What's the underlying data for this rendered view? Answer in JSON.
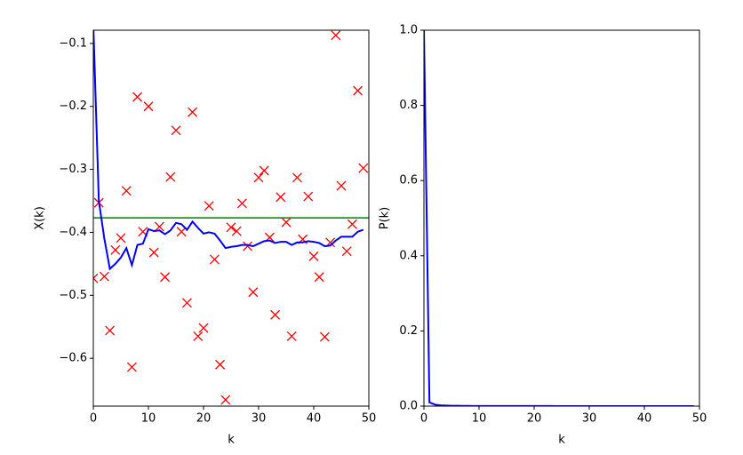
{
  "chart_data": [
    {
      "type": "scatter",
      "xlabel": "k",
      "ylabel": "X(k)",
      "x": [
        0,
        1,
        2,
        3,
        4,
        5,
        6,
        7,
        8,
        9,
        10,
        11,
        12,
        13,
        14,
        15,
        16,
        17,
        18,
        19,
        20,
        21,
        22,
        23,
        24,
        25,
        26,
        27,
        28,
        29,
        30,
        31,
        32,
        33,
        34,
        35,
        36,
        37,
        38,
        39,
        40,
        41,
        42,
        43,
        44,
        45,
        46,
        47,
        48,
        49
      ],
      "series": [
        {
          "style": "marker",
          "marker": "x",
          "color": "#ff0000",
          "values": [
            -0.473,
            -0.353,
            -0.47,
            -0.556,
            -0.428,
            -0.409,
            -0.334,
            -0.614,
            -0.185,
            -0.399,
            -0.2,
            -0.432,
            -0.391,
            -0.471,
            -0.312,
            -0.238,
            -0.399,
            -0.512,
            -0.209,
            -0.565,
            -0.552,
            -0.358,
            -0.443,
            -0.61,
            -0.666,
            -0.392,
            -0.398,
            -0.354,
            -0.422,
            -0.495,
            -0.313,
            -0.302,
            -0.408,
            -0.531,
            -0.344,
            -0.384,
            -0.565,
            -0.313,
            -0.411,
            -0.343,
            -0.438,
            -0.471,
            -0.566,
            -0.416,
            -0.087,
            -0.326,
            -0.43,
            -0.387,
            -0.175,
            -0.298
          ]
        },
        {
          "style": "line",
          "color": "#0000ff",
          "values": [
            -0.07,
            -0.35,
            -0.41,
            -0.458,
            -0.45,
            -0.44,
            -0.425,
            -0.452,
            -0.42,
            -0.418,
            -0.395,
            -0.398,
            -0.397,
            -0.403,
            -0.397,
            -0.385,
            -0.387,
            -0.396,
            -0.383,
            -0.393,
            -0.402,
            -0.4,
            -0.402,
            -0.413,
            -0.425,
            -0.423,
            -0.422,
            -0.42,
            -0.42,
            -0.422,
            -0.418,
            -0.414,
            -0.413,
            -0.417,
            -0.415,
            -0.415,
            -0.42,
            -0.416,
            -0.416,
            -0.414,
            -0.415,
            -0.417,
            -0.422,
            -0.421,
            -0.413,
            -0.407,
            -0.407,
            -0.407,
            -0.399,
            -0.396
          ]
        }
      ],
      "hline": {
        "value": -0.377,
        "color": "#008000"
      },
      "xlim": [
        0,
        50
      ],
      "xticks": [
        0,
        10,
        20,
        30,
        40,
        50
      ],
      "ylim": [
        -0.676,
        -0.079
      ],
      "yticks": [
        {
          "value": -0.1,
          "label": "−0.1"
        },
        {
          "value": -0.2,
          "label": "−0.2"
        },
        {
          "value": -0.3,
          "label": "−0.3"
        },
        {
          "value": -0.4,
          "label": "−0.4"
        },
        {
          "value": -0.5,
          "label": "−0.5"
        },
        {
          "value": -0.6,
          "label": "−0.6"
        }
      ]
    },
    {
      "type": "line",
      "xlabel": "k",
      "ylabel": "P(k)",
      "x": [
        0,
        1,
        2,
        3,
        4,
        5,
        6,
        7,
        8,
        9,
        10,
        11,
        12,
        13,
        14,
        15,
        16,
        17,
        18,
        19,
        20,
        21,
        22,
        23,
        24,
        25,
        26,
        27,
        28,
        29,
        30,
        31,
        32,
        33,
        34,
        35,
        36,
        37,
        38,
        39,
        40,
        41,
        42,
        43,
        44,
        45,
        46,
        47,
        48,
        49
      ],
      "series": [
        {
          "style": "line",
          "color": "#0000ff",
          "values": [
            1.0,
            0.01,
            0.004,
            0.002,
            0.0015,
            0.001,
            0.0008,
            0.0006,
            0.0005,
            0.0004,
            0.0004,
            0.0003,
            0.0003,
            0.0003,
            0.0003,
            0.0002,
            0.0002,
            0.0002,
            0.0002,
            0.0002,
            0.0002,
            0.0002,
            0.0002,
            0.0002,
            0.0001,
            0.0001,
            0.0001,
            0.0001,
            0.0001,
            0.0001,
            0.0001,
            0.0001,
            0.0001,
            0.0001,
            0.0001,
            0.0001,
            0.0001,
            0.0001,
            0.0001,
            0.0001,
            0.0001,
            0.0001,
            0.0001,
            0.0001,
            0.0001,
            0.0001,
            0.0001,
            0.0001,
            0.0001,
            0.0001
          ]
        }
      ],
      "xlim": [
        0,
        50
      ],
      "xticks": [
        0,
        10,
        20,
        30,
        40,
        50
      ],
      "ylim": [
        0,
        1
      ],
      "yticks": [
        {
          "value": 0,
          "label": "0.0"
        },
        0.2,
        0.4,
        0.6,
        {
          "value": 0.8,
          "label": "0.8"
        },
        {
          "value": 1,
          "label": "1.0"
        }
      ]
    }
  ]
}
